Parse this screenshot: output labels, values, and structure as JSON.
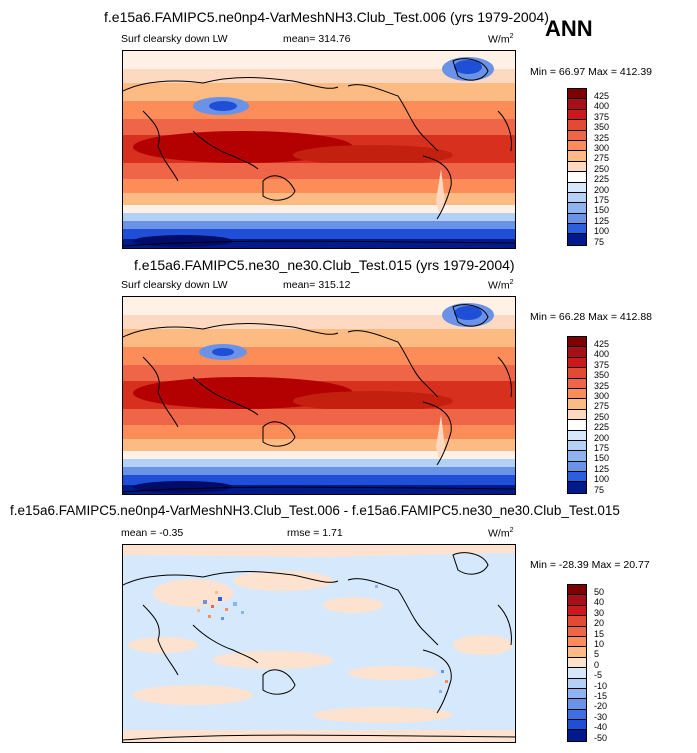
{
  "season": "ANN",
  "panels": [
    {
      "title": "f.e15a6.FAMIPC5.ne0np4-VarMeshNH3.Club_Test.006 (yrs 1979-2004)",
      "left_label": "Surf clearsky down LW",
      "center_label": "mean= 314.76",
      "units": "W/m",
      "units_sup": "2",
      "minmax": "Min = 66.97 Max = 412.39",
      "colorbar_labels": [
        "425",
        "400",
        "375",
        "350",
        "325",
        "300",
        "275",
        "250",
        "225",
        "200",
        "175",
        "150",
        "125",
        "100",
        "75"
      ]
    },
    {
      "title": "f.e15a6.FAMIPC5.ne30_ne30.Club_Test.015 (yrs 1979-2004)",
      "left_label": "Surf clearsky down LW",
      "center_label": "mean= 315.12",
      "units": "W/m",
      "units_sup": "2",
      "minmax": "Min = 66.28 Max = 412.88",
      "colorbar_labels": [
        "425",
        "400",
        "375",
        "350",
        "325",
        "300",
        "275",
        "250",
        "225",
        "200",
        "175",
        "150",
        "125",
        "100",
        "75"
      ]
    },
    {
      "title": "f.e15a6.FAMIPC5.ne0np4-VarMeshNH3.Club_Test.006 - f.e15a6.FAMIPC5.ne30_ne30.Club_Test.015",
      "left_label": "mean = -0.35",
      "center_label": "rmse = 1.71",
      "units": "W/m",
      "units_sup": "2",
      "minmax": "Min = -28.39 Max = 20.77",
      "colorbar_labels": [
        "50",
        "40",
        "30",
        "20",
        "15",
        "10",
        "5",
        "0",
        "-5",
        "-10",
        "-15",
        "-20",
        "-30",
        "-40",
        "-50"
      ]
    }
  ],
  "colors": {
    "scale": [
      "#7f0000",
      "#b30000",
      "#d7301f",
      "#e34a33",
      "#ef6548",
      "#fc8d59",
      "#fdbb84",
      "#fdd9c1",
      "#fff1e6",
      "#d6e8fb",
      "#b3d1f7",
      "#8fb3f0",
      "#6a93e8",
      "#3f6ee0",
      "#1f4fd6",
      "#0c30b8",
      "#001a8c"
    ]
  }
}
